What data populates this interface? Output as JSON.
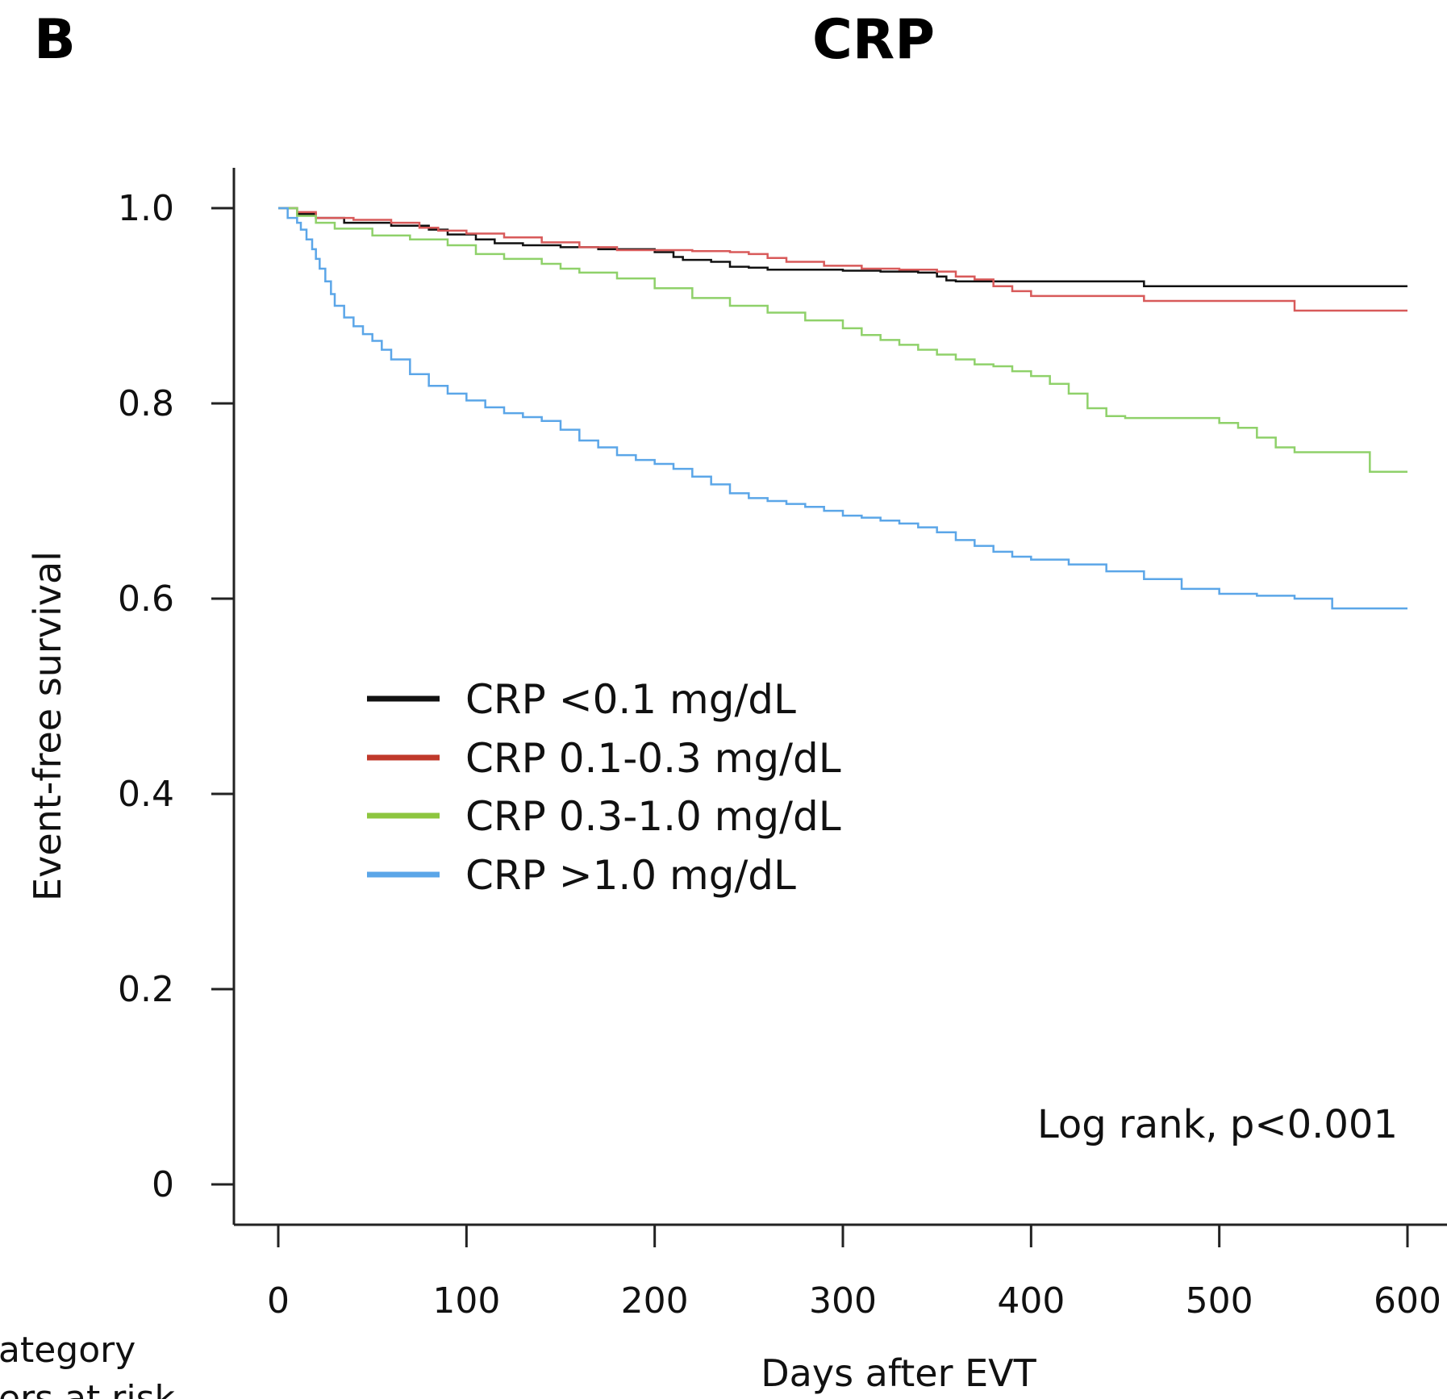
{
  "panel_label": "B",
  "cut_off_text": [
    "ategory",
    "ers at risk"
  ],
  "colors": {
    "CRP <0.1 mg/dL": "#111111",
    "CRP 0.1-0.3 mg/dL": "#d85a5a",
    "CRP 0.3-1.0 mg/dL": "#8fd16a",
    "CRP >1.0 mg/dL": "#5ba6e8",
    "legend_red": "#c0392b",
    "legend_green": "#8dc63f"
  },
  "chart_data": {
    "type": "line",
    "step": true,
    "title": "CRP",
    "xlabel": "Days after EVT",
    "ylabel": "Event-free survival",
    "xlim": [
      0,
      600
    ],
    "ylim": [
      0,
      1.0
    ],
    "xticks": [
      0,
      100,
      200,
      300,
      400,
      500,
      600
    ],
    "yticks": [
      0,
      0.2,
      0.4,
      0.6,
      0.8,
      1.0
    ],
    "ytick_labels": [
      "0",
      "0.2",
      "0.4",
      "0.6",
      "0.8",
      "1.0"
    ],
    "legend_position": "middle-left",
    "annotation": "Log rank, p<0.001",
    "series": [
      {
        "name": "CRP <0.1 mg/dL",
        "x": [
          0,
          10,
          20,
          35,
          60,
          80,
          90,
          105,
          115,
          130,
          150,
          170,
          200,
          210,
          215,
          230,
          240,
          250,
          260,
          280,
          300,
          320,
          340,
          350,
          355,
          360,
          390,
          400,
          420,
          440,
          460,
          480,
          500,
          520,
          540,
          560,
          580,
          600
        ],
        "y": [
          1.0,
          0.994,
          0.99,
          0.985,
          0.982,
          0.978,
          0.973,
          0.968,
          0.964,
          0.962,
          0.96,
          0.958,
          0.955,
          0.95,
          0.947,
          0.945,
          0.94,
          0.939,
          0.937,
          0.937,
          0.936,
          0.935,
          0.934,
          0.93,
          0.926,
          0.925,
          0.925,
          0.925,
          0.925,
          0.925,
          0.92,
          0.92,
          0.92,
          0.92,
          0.92,
          0.92,
          0.92,
          0.92
        ]
      },
      {
        "name": "CRP 0.1-0.3 mg/dL",
        "x": [
          0,
          10,
          20,
          40,
          60,
          75,
          85,
          100,
          120,
          140,
          160,
          180,
          200,
          220,
          240,
          250,
          260,
          270,
          290,
          310,
          330,
          350,
          360,
          370,
          380,
          390,
          400,
          430,
          460,
          480,
          500,
          520,
          530,
          540,
          560,
          580,
          600
        ],
        "y": [
          1.0,
          0.996,
          0.99,
          0.988,
          0.985,
          0.98,
          0.977,
          0.974,
          0.97,
          0.965,
          0.96,
          0.957,
          0.957,
          0.956,
          0.955,
          0.953,
          0.949,
          0.945,
          0.941,
          0.938,
          0.937,
          0.935,
          0.93,
          0.927,
          0.92,
          0.915,
          0.91,
          0.91,
          0.905,
          0.905,
          0.905,
          0.905,
          0.905,
          0.895,
          0.895,
          0.895,
          0.895
        ]
      },
      {
        "name": "CRP 0.3-1.0 mg/dL",
        "x": [
          0,
          10,
          20,
          30,
          50,
          70,
          90,
          105,
          120,
          140,
          150,
          160,
          180,
          200,
          220,
          240,
          260,
          280,
          300,
          310,
          320,
          330,
          340,
          350,
          360,
          370,
          380,
          390,
          400,
          410,
          420,
          430,
          440,
          450,
          470,
          490,
          500,
          510,
          520,
          530,
          540,
          560,
          570,
          580,
          600
        ],
        "y": [
          1.0,
          0.992,
          0.985,
          0.979,
          0.972,
          0.968,
          0.962,
          0.953,
          0.948,
          0.943,
          0.938,
          0.934,
          0.928,
          0.918,
          0.908,
          0.9,
          0.893,
          0.885,
          0.877,
          0.87,
          0.865,
          0.86,
          0.855,
          0.85,
          0.845,
          0.84,
          0.838,
          0.833,
          0.828,
          0.82,
          0.81,
          0.795,
          0.787,
          0.785,
          0.785,
          0.785,
          0.78,
          0.775,
          0.765,
          0.755,
          0.75,
          0.75,
          0.75,
          0.73,
          0.73
        ]
      },
      {
        "name": "CRP >1.0 mg/dL",
        "x": [
          0,
          5,
          10,
          12,
          15,
          18,
          20,
          22,
          25,
          28,
          30,
          35,
          40,
          45,
          50,
          55,
          60,
          70,
          80,
          90,
          100,
          110,
          120,
          130,
          140,
          150,
          160,
          170,
          180,
          190,
          200,
          210,
          220,
          230,
          240,
          250,
          260,
          270,
          280,
          290,
          300,
          310,
          320,
          330,
          340,
          350,
          360,
          370,
          380,
          390,
          400,
          420,
          440,
          460,
          480,
          500,
          520,
          540,
          560,
          580,
          600
        ],
        "y": [
          1.0,
          0.99,
          0.985,
          0.978,
          0.968,
          0.958,
          0.948,
          0.938,
          0.925,
          0.912,
          0.9,
          0.888,
          0.879,
          0.871,
          0.864,
          0.855,
          0.845,
          0.83,
          0.818,
          0.81,
          0.803,
          0.796,
          0.79,
          0.786,
          0.782,
          0.773,
          0.762,
          0.755,
          0.747,
          0.742,
          0.738,
          0.733,
          0.725,
          0.717,
          0.708,
          0.703,
          0.7,
          0.697,
          0.694,
          0.69,
          0.685,
          0.683,
          0.68,
          0.677,
          0.673,
          0.668,
          0.66,
          0.654,
          0.648,
          0.643,
          0.64,
          0.635,
          0.628,
          0.62,
          0.61,
          0.605,
          0.603,
          0.6,
          0.59,
          0.59,
          0.59
        ]
      }
    ]
  }
}
